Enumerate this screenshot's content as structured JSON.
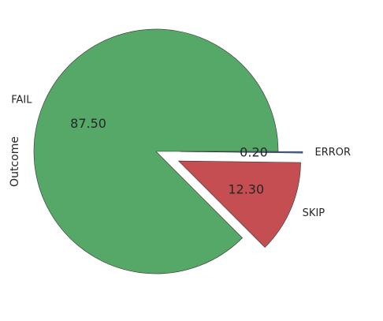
{
  "chart_data": {
    "type": "pie",
    "title": "",
    "ylabel": "Outcome",
    "categories": [
      "FAIL",
      "SKIP",
      "ERROR"
    ],
    "values": [
      87.5,
      12.3,
      0.2
    ],
    "value_labels": [
      "87.50",
      "12.30",
      "0.20"
    ],
    "explode": [
      0,
      0.2,
      0.2
    ],
    "colors": [
      "#55a868",
      "#c44e52",
      "#4c72b0"
    ],
    "edge_color": "#333333",
    "start_angle_deg": 0,
    "direction": "counterclockwise",
    "legend": "none"
  }
}
